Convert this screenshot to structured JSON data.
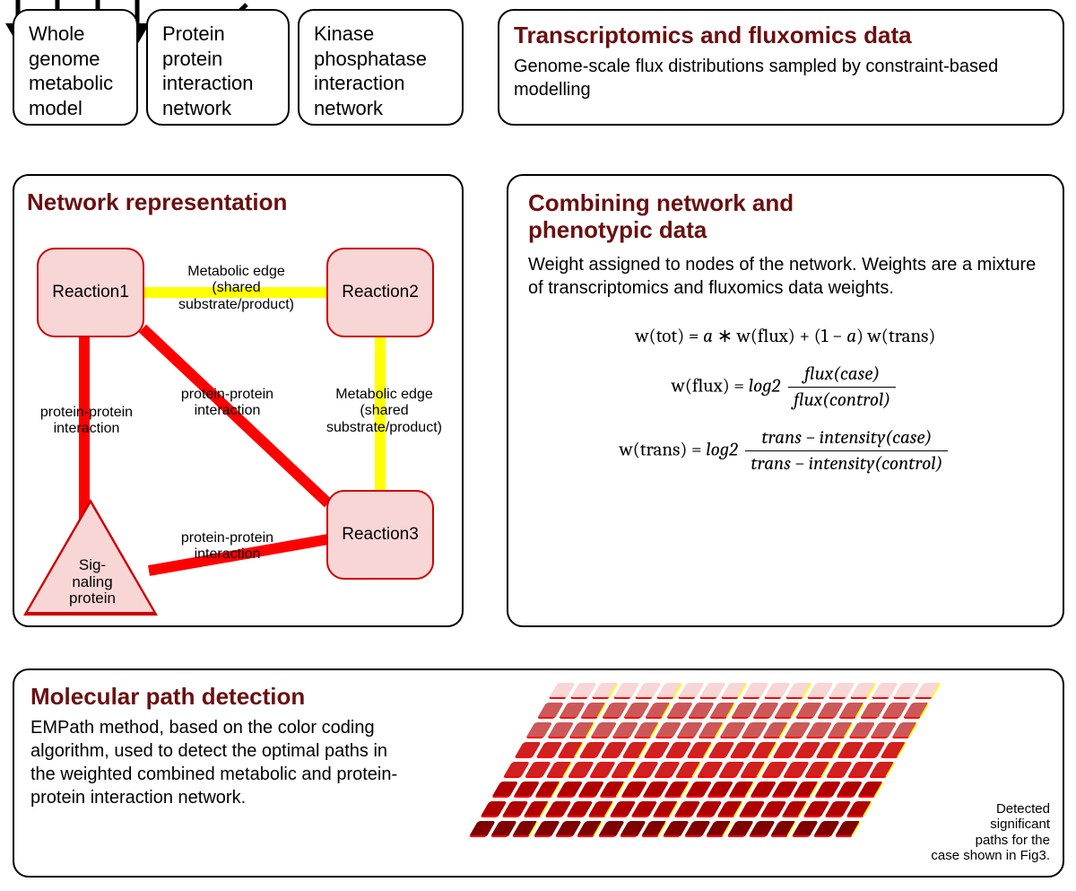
{
  "top": {
    "box1": "Whole\ngenome\nmetabolic\nmodel",
    "box2": "Protein\nprotein\ninteraction\nnetwork",
    "box3": "Kinase\nphosphatase\ninteraction\nnetwork",
    "box4_title": "Transcriptomics and fluxomics data",
    "box4_sub": "Genome-scale flux distributions sampled by constraint-based modelling"
  },
  "network": {
    "title": "Network representation",
    "nodes": {
      "r1": "Reaction1",
      "r2": "Reaction2",
      "r3": "Reaction3",
      "sig1": "Sig-",
      "sig2": "naling",
      "sig3": "protein"
    },
    "edge_labels": {
      "m1": "Metabolic edge\n(shared\nsubstrate/product)",
      "m2": "Metabolic edge\n(shared\nsubstrate/product)",
      "p1": "protein-protein\ninteraction",
      "p2": "protein-protein\ninteraction",
      "p3": "protein-protein\ninteraction"
    },
    "colors": {
      "node_fill": "#f9d6d6",
      "node_border": "#c00000",
      "edge_metabolic": "#ffff00",
      "edge_ppi": "#ff0000"
    }
  },
  "combine": {
    "title": "Combining network and\nphenotypic data",
    "desc": "Weight assigned to nodes of the network. Weights are a mixture of transcriptomics and fluxomics data weights.",
    "f1_lhs": "w(tot) = ",
    "f1_rhs_a": "a",
    "f1_rhs_mid": " ∗ w(flux) + (1 − ",
    "f1_rhs_a2": "a",
    "f1_rhs_end": ") w(trans)",
    "f2_lhs": "w(flux) = ",
    "f2_log": "log2",
    "f2_num": "flux(case)",
    "f2_den": "flux(control)",
    "f3_lhs": "w(trans) = ",
    "f3_log": "log2",
    "f3_num": "trans − intensity(case)",
    "f3_den": "trans − intensity(control)"
  },
  "detect": {
    "title": "Molecular path detection",
    "desc": "EMPath method, based on the color coding algorithm, used to detect the optimal paths in the weighted combined metabolic and protein-protein interaction network.",
    "caption": "Detected\nsignificant\npaths for the\ncase shown in Fig3."
  },
  "tiny": {
    "rows": 8,
    "cols": 18,
    "stroke_h": "#ffff00",
    "stroke_v": "#ff0000",
    "colors_by_row": [
      "#f9d6d6",
      "#cc5858",
      "#cc5858",
      "#d02020",
      "#d02020",
      "#b00000",
      "#b00000",
      "#800000"
    ]
  },
  "style": {
    "title_color": "#6a1010",
    "border_color": "#000000",
    "bg": "#ffffff",
    "border_radius": 18
  }
}
